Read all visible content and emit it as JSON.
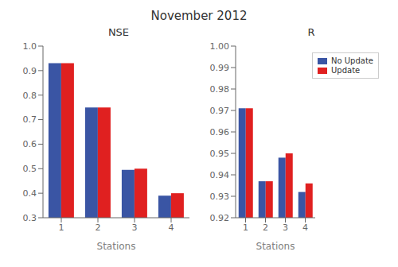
{
  "title": "November 2012",
  "chart_data": [
    {
      "type": "bar",
      "title": "NSE",
      "x_label": "Stations",
      "categories": [
        "1",
        "2",
        "3",
        "4"
      ],
      "series": [
        {
          "name": "No Update",
          "color": "#3a55a4",
          "values": [
            0.93,
            0.75,
            0.495,
            0.39
          ]
        },
        {
          "name": "Update",
          "color": "#e02020",
          "values": [
            0.93,
            0.75,
            0.5,
            0.4
          ]
        }
      ],
      "ylim": [
        0.3,
        1.0
      ],
      "yticks": [
        0.3,
        0.4,
        0.5,
        0.6,
        0.7,
        0.8,
        0.9,
        {
          "value": 1.0,
          "label": "1.0"
        }
      ],
      "grid": false
    },
    {
      "type": "bar",
      "title": "R",
      "x_label": "Stations",
      "categories": [
        "1",
        "2",
        "3",
        "4"
      ],
      "series": [
        {
          "name": "No Update",
          "color": "#3a55a4",
          "values": [
            0.971,
            0.937,
            0.948,
            0.932
          ]
        },
        {
          "name": "Update",
          "color": "#e02020",
          "values": [
            0.971,
            0.937,
            0.95,
            0.936
          ]
        }
      ],
      "ylim": [
        0.92,
        1.0
      ],
      "yticks": [
        0.92,
        0.93,
        0.94,
        0.95,
        0.96,
        0.97,
        0.98,
        0.99,
        {
          "value": 1.0,
          "label": "1.00"
        }
      ],
      "grid": false,
      "legend": "upper right"
    }
  ]
}
